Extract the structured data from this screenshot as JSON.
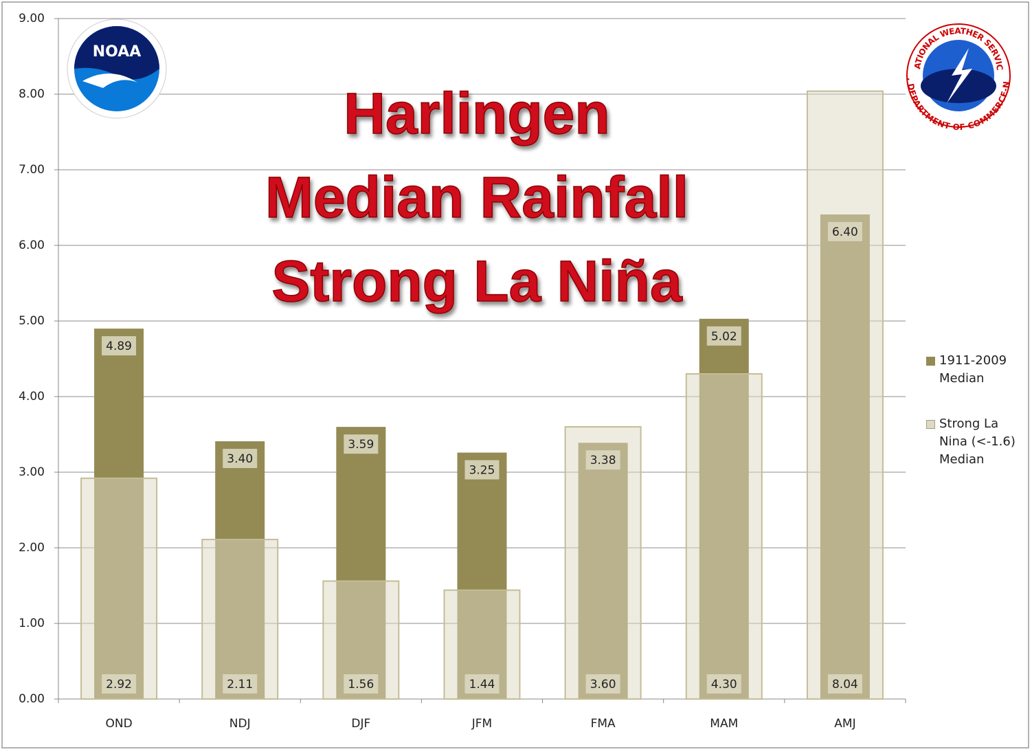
{
  "chart_data": {
    "type": "bar",
    "title": [
      "Harlingen",
      "Median Rainfall",
      "Strong La Niña"
    ],
    "categories": [
      "OND",
      "NDJ",
      "DJF",
      "JFM",
      "FMA",
      "MAM",
      "AMJ"
    ],
    "series": [
      {
        "name": "1911-2009 Median",
        "color": "#948a54",
        "values": [
          4.89,
          3.4,
          3.59,
          3.25,
          3.38,
          5.02,
          6.4
        ],
        "value_labels": [
          "4.89",
          "3.40",
          "3.59",
          "3.25",
          "3.38",
          "5.02",
          "6.40"
        ]
      },
      {
        "name": "Strong La Nina (<-1.6) Median",
        "color": "#ddd9c3",
        "values": [
          2.92,
          2.11,
          1.56,
          1.44,
          3.6,
          4.3,
          8.04
        ],
        "value_labels": [
          "2.92",
          "2.11",
          "1.56",
          "1.44",
          "3.60",
          "4.30",
          "8.04"
        ]
      }
    ],
    "ylim": [
      0,
      9
    ],
    "yticks": [
      {
        "value": 0,
        "label": "0.00"
      },
      {
        "value": 1,
        "label": "1.00"
      },
      {
        "value": 2,
        "label": "2.00"
      },
      {
        "value": 3,
        "label": "3.00"
      },
      {
        "value": 4,
        "label": "4.00"
      },
      {
        "value": 5,
        "label": "5.00"
      },
      {
        "value": 6,
        "label": "6.00"
      },
      {
        "value": 7,
        "label": "7.00"
      },
      {
        "value": 8,
        "label": "8.00"
      },
      {
        "value": 9,
        "label": "9.00"
      }
    ],
    "grid": true,
    "legend": "right"
  },
  "logos": {
    "noaa": "NOAA",
    "nws_top": "NATIONAL WEATHER SERVICE",
    "nws_bottom": "U.S. DEPARTMENT OF COMMERCE-NOAA"
  }
}
